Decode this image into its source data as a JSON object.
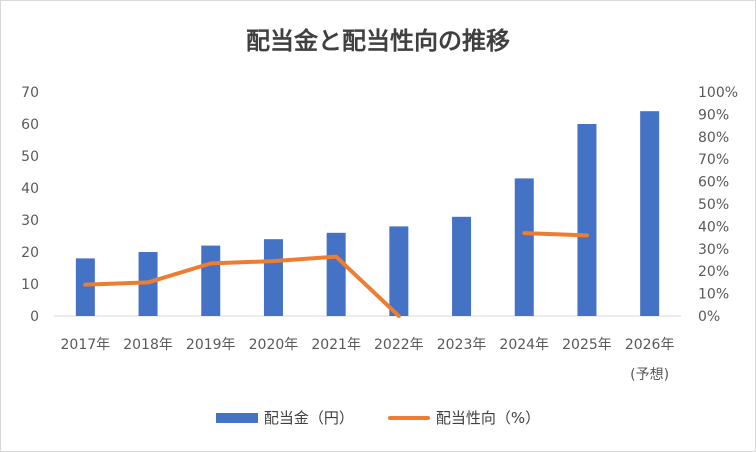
{
  "chart_data": {
    "type": "bar",
    "title": "配当金と配当性向の推移",
    "categories": [
      "2017年",
      "2018年",
      "2019年",
      "2020年",
      "2021年",
      "2022年",
      "2023年",
      "2024年",
      "2025年",
      "2026年"
    ],
    "category_sublabels": [
      "",
      "",
      "",
      "",
      "",
      "",
      "",
      "",
      "",
      "(予想)"
    ],
    "series": [
      {
        "name": "配当金（円）",
        "type": "bar",
        "axis": "left",
        "color": "#4472c4",
        "values": [
          18,
          20,
          22,
          24,
          26,
          28,
          31,
          43,
          60,
          64
        ]
      },
      {
        "name": "配当性向（%）",
        "type": "line",
        "axis": "right",
        "color": "#ed7d31",
        "values": [
          14,
          15,
          23.5,
          24.5,
          26.5,
          0,
          null,
          37,
          36,
          null
        ]
      }
    ],
    "y_left": {
      "ylim": [
        0,
        70
      ],
      "ticks": [
        0,
        10,
        20,
        30,
        40,
        50,
        60,
        70
      ]
    },
    "y_right": {
      "ylim": [
        0,
        100
      ],
      "ticks": [
        "0%",
        "10%",
        "20%",
        "30%",
        "40%",
        "50%",
        "60%",
        "70%",
        "80%",
        "90%",
        "100%"
      ]
    },
    "grid": false,
    "legend_position": "bottom"
  }
}
